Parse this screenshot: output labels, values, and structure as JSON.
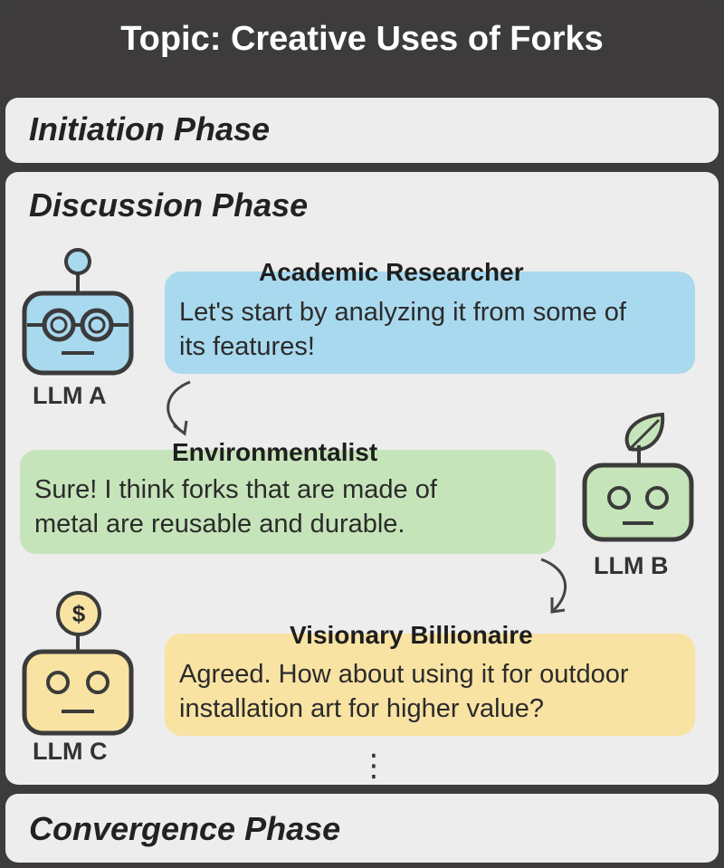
{
  "title": "Topic: Creative Uses of Forks",
  "phases": {
    "initiation": "Initiation Phase",
    "discussion": "Discussion Phase",
    "convergence": "Convergence Phase"
  },
  "agents": [
    {
      "label": "LLM A",
      "role": "Academic Researcher",
      "message_line1": "Let's start by analyzing it from some of",
      "message_line2": "its features!",
      "color": "#a9d9ee",
      "accessory": "antenna-ball"
    },
    {
      "label": "LLM B",
      "role": "Environmentalist",
      "message_line1": "Sure! I think forks that are made of",
      "message_line2": "metal are reusable and durable.",
      "color": "#c6e4b9",
      "accessory": "leaf"
    },
    {
      "label": "LLM C",
      "role": "Visionary Billionaire",
      "message_line1": "Agreed. How about using it for outdoor",
      "message_line2": "installation art for higher value?",
      "color": "#f9e3a3",
      "accessory": "dollar-coin"
    }
  ],
  "coin_symbol": "$",
  "ellipsis": "⋮"
}
